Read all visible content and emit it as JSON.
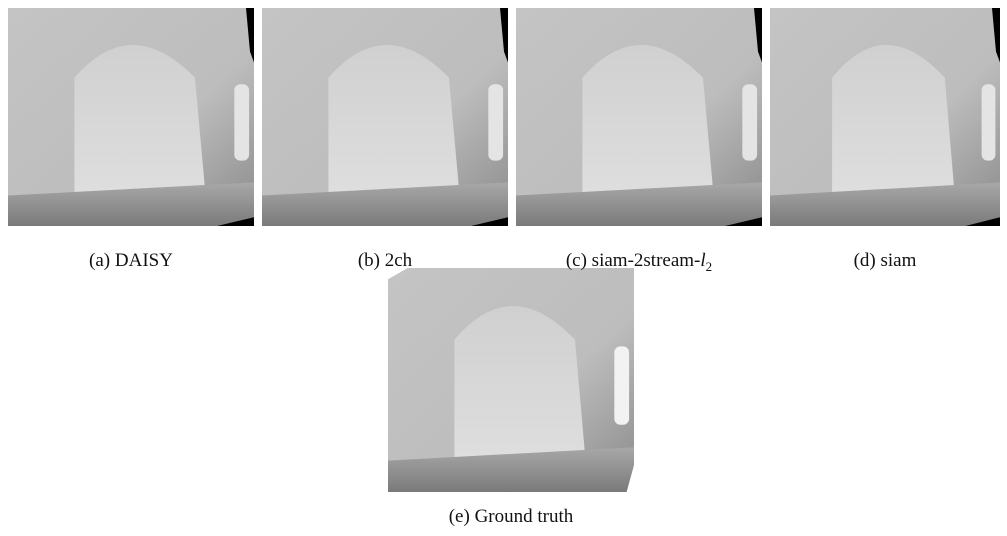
{
  "figure": {
    "panels": [
      {
        "caption": "(a) DAISY"
      },
      {
        "caption": "(b) 2ch"
      },
      {
        "caption": [
          "(c) siam-2stream-",
          "l",
          "2"
        ]
      },
      {
        "caption": "(d) siam"
      },
      {
        "caption": "(e) Ground truth"
      }
    ]
  }
}
